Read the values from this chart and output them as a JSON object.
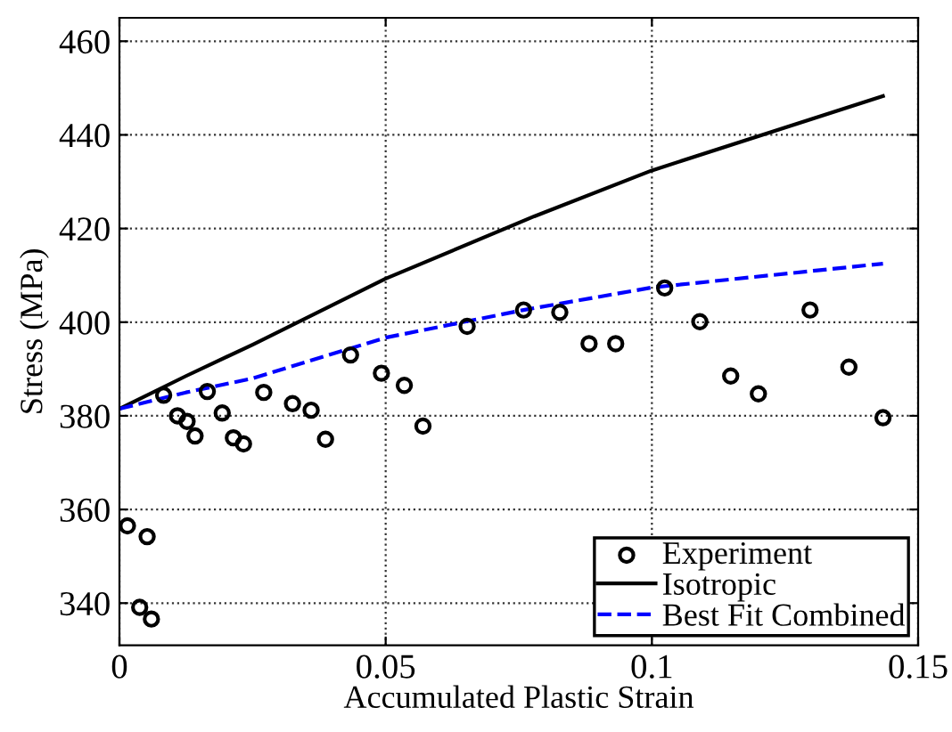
{
  "chart_data": {
    "type": "scatter",
    "xlabel": "Accumulated Plastic Strain",
    "ylabel": "Stress (MPa)",
    "xlim": [
      0,
      0.15
    ],
    "ylim": [
      331,
      465
    ],
    "xticks": [
      0,
      0.05,
      0.1,
      0.15
    ],
    "yticks": [
      340,
      360,
      380,
      400,
      420,
      440,
      460
    ],
    "grid": true,
    "legend": "bottom right",
    "series": [
      {
        "name": "Experiment",
        "color": "#000000",
        "marker": "circle",
        "x": [
          0.0015,
          0.0052,
          0.0038,
          0.006,
          0.0083,
          0.0109,
          0.0127,
          0.0142,
          0.0165,
          0.0193,
          0.0214,
          0.0233,
          0.0271,
          0.0325,
          0.036,
          0.0387,
          0.0434,
          0.0492,
          0.0535,
          0.057,
          0.0653,
          0.0759,
          0.0827,
          0.0882,
          0.0932,
          0.1024,
          0.109,
          0.1148,
          0.12,
          0.1297,
          0.137,
          0.1434
        ],
        "values": [
          356.5,
          354.2,
          339.1,
          336.6,
          384.4,
          380.0,
          378.8,
          375.7,
          385.2,
          380.6,
          375.3,
          374.0,
          385.0,
          382.6,
          381.2,
          375.0,
          393.0,
          389.1,
          386.5,
          377.8,
          399.1,
          402.6,
          402.1,
          395.4,
          395.4,
          407.3,
          400.1,
          388.5,
          384.7,
          402.6,
          390.4,
          379.6
        ]
      },
      {
        "name": "Isotropic",
        "type": "line",
        "color": "#000000",
        "line_style": "solid",
        "x": [
          0,
          0.0125,
          0.025,
          0.05,
          0.0779,
          0.1,
          0.1434
        ],
        "values": [
          381.5,
          388.5,
          395.2,
          409.3,
          422.6,
          432.4,
          448.3
        ]
      },
      {
        "name": "Best Fit Combined",
        "type": "line",
        "color": "#0000ff",
        "line_style": "dashed",
        "x": [
          0,
          0.0125,
          0.025,
          0.05,
          0.0759,
          0.1,
          0.1434
        ],
        "values": [
          381.5,
          385,
          388,
          396.7,
          402.6,
          407.4,
          412.5
        ]
      }
    ]
  }
}
